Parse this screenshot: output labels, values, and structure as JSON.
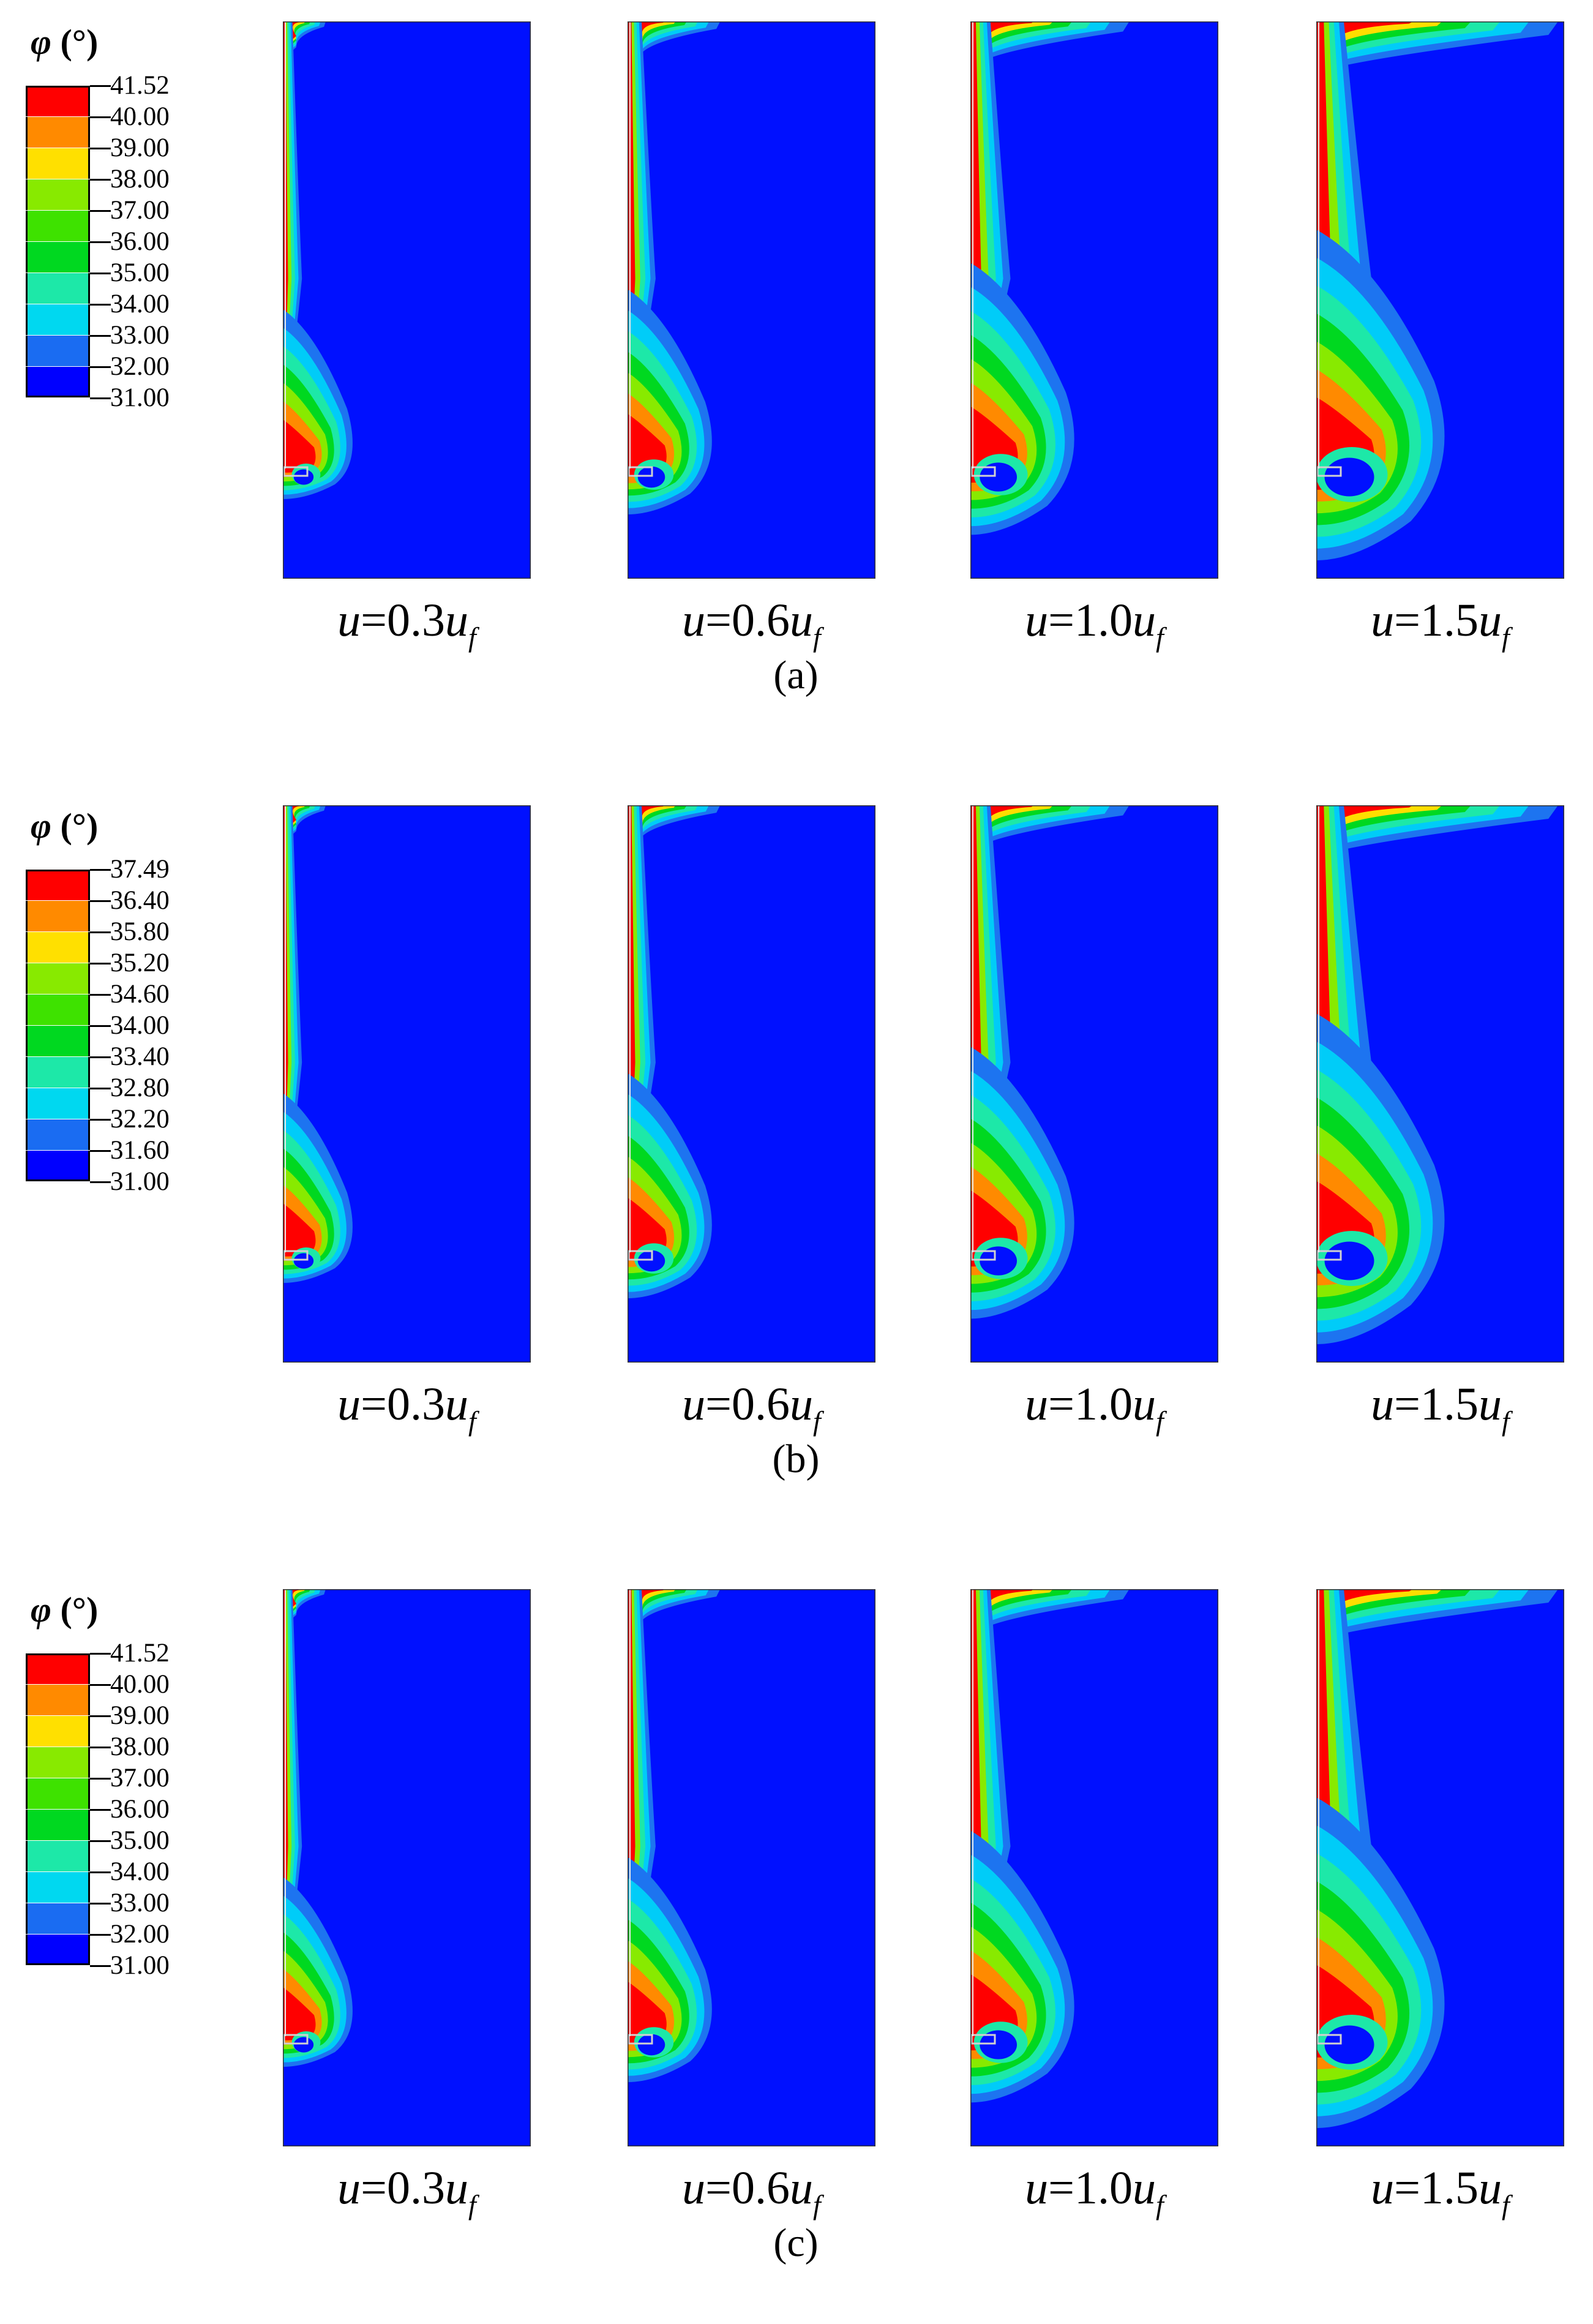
{
  "legend_title_symbol": "φ",
  "legend_title_unit": "(°)",
  "color_scale": [
    "#0000ff",
    "#1a6cf2",
    "#00d8f0",
    "#1de8a8",
    "#00d820",
    "#3ee200",
    "#88ea00",
    "#ffe000",
    "#ff8a00",
    "#ff0000"
  ],
  "panel_colors": {
    "background": "#0010ff",
    "c1": "#1d74f0",
    "c2": "#00ccf8",
    "c3": "#1de8a8",
    "c4": "#00d820",
    "c5": "#88ea00",
    "c6": "#ffde00",
    "c7": "#ff8a00",
    "c8": "#ff0000"
  },
  "groups": [
    {
      "label": "(a)",
      "legend_values": [
        "41.52",
        "40.00",
        "39.00",
        "38.00",
        "37.00",
        "36.00",
        "35.00",
        "34.00",
        "33.00",
        "32.00",
        "31.00"
      ],
      "panels": [
        {
          "u_prefix": "u",
          "equals_coeff": "=0.3",
          "u_suffix": "u",
          "sub": "f",
          "loading_ratio": 0.3
        },
        {
          "u_prefix": "u",
          "equals_coeff": "=0.6",
          "u_suffix": "u",
          "sub": "f",
          "loading_ratio": 0.6
        },
        {
          "u_prefix": "u",
          "equals_coeff": "=1.0",
          "u_suffix": "u",
          "sub": "f",
          "loading_ratio": 1.0
        },
        {
          "u_prefix": "u",
          "equals_coeff": "=1.5",
          "u_suffix": "u",
          "sub": "f",
          "loading_ratio": 1.5
        }
      ]
    },
    {
      "label": "(b)",
      "legend_values": [
        "37.49",
        "36.40",
        "35.80",
        "35.20",
        "34.60",
        "34.00",
        "33.40",
        "32.80",
        "32.20",
        "31.60",
        "31.00"
      ],
      "panels": [
        {
          "u_prefix": "u",
          "equals_coeff": "=0.3",
          "u_suffix": "u",
          "sub": "f",
          "loading_ratio": 0.3
        },
        {
          "u_prefix": "u",
          "equals_coeff": "=0.6",
          "u_suffix": "u",
          "sub": "f",
          "loading_ratio": 0.6
        },
        {
          "u_prefix": "u",
          "equals_coeff": "=1.0",
          "u_suffix": "u",
          "sub": "f",
          "loading_ratio": 1.0
        },
        {
          "u_prefix": "u",
          "equals_coeff": "=1.5",
          "u_suffix": "u",
          "sub": "f",
          "loading_ratio": 1.5
        }
      ]
    },
    {
      "label": "(c)",
      "legend_values": [
        "41.52",
        "40.00",
        "39.00",
        "38.00",
        "37.00",
        "36.00",
        "35.00",
        "34.00",
        "33.00",
        "32.00",
        "31.00"
      ],
      "panels": [
        {
          "u_prefix": "u",
          "equals_coeff": "=0.3",
          "u_suffix": "u",
          "sub": "f",
          "loading_ratio": 0.3
        },
        {
          "u_prefix": "u",
          "equals_coeff": "=0.6",
          "u_suffix": "u",
          "sub": "f",
          "loading_ratio": 0.6
        },
        {
          "u_prefix": "u",
          "equals_coeff": "=1.0",
          "u_suffix": "u",
          "sub": "f",
          "loading_ratio": 1.0
        },
        {
          "u_prefix": "u",
          "equals_coeff": "=1.5",
          "u_suffix": "u",
          "sub": "f",
          "loading_ratio": 1.5
        }
      ]
    }
  ]
}
